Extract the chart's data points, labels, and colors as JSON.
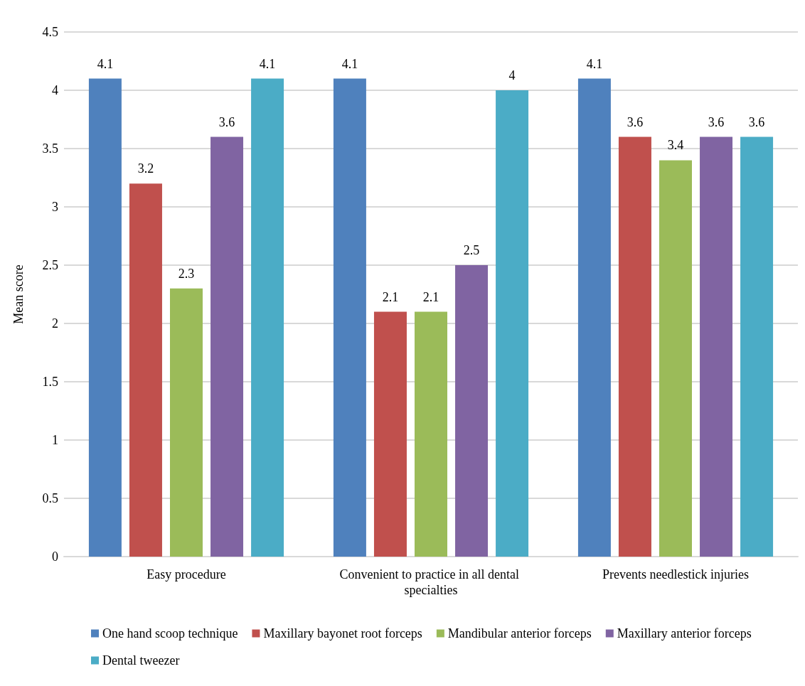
{
  "chart_data": {
    "type": "bar",
    "ylabel": "Mean score",
    "categories": [
      "Easy procedure",
      "Convenient to practice in all dental specialties",
      "Prevents needlestick injuries"
    ],
    "series": [
      {
        "name": "One hand scoop technique",
        "color": "#4f81bd",
        "values": [
          4.1,
          4.1,
          4.1
        ]
      },
      {
        "name": "Maxillary bayonet root forceps",
        "color": "#c0504d",
        "values": [
          3.2,
          2.1,
          3.6
        ]
      },
      {
        "name": "Mandibular anterior forceps",
        "color": "#9bbb59",
        "values": [
          2.3,
          2.1,
          3.4
        ]
      },
      {
        "name": "Maxillary anterior forceps",
        "color": "#8064a2",
        "values": [
          3.6,
          2.5,
          3.6
        ]
      },
      {
        "name": "Dental tweezer",
        "color": "#4bacc6",
        "values": [
          4.1,
          4,
          3.6
        ]
      }
    ],
    "ylim": [
      0,
      4.5
    ],
    "yticks": [
      0,
      0.5,
      1,
      1.5,
      2,
      2.5,
      3,
      3.5,
      4,
      4.5
    ],
    "grid": "y",
    "legend": "bottom",
    "data_labels": true
  }
}
